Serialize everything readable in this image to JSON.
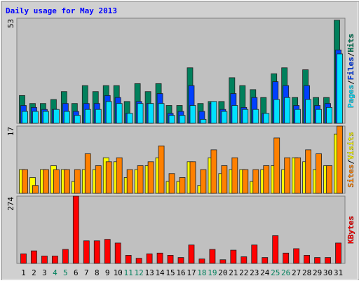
{
  "chart_data": [
    {
      "type": "bar",
      "title": "Daily usage for May 2013",
      "ylim": [
        0,
        53
      ],
      "yticks": [
        53
      ],
      "series": [
        {
          "name": "Hits",
          "color": "#00805c",
          "values": [
            14,
            10,
            10,
            12,
            16,
            10,
            19,
            16,
            19,
            19,
            11,
            20,
            16,
            20,
            9,
            9,
            28,
            10,
            11,
            11,
            23,
            19,
            17,
            13,
            25,
            28,
            13,
            27,
            13,
            13,
            52
          ]
        },
        {
          "name": "Files",
          "color": "#0040ff",
          "values": [
            9,
            8,
            7,
            7,
            10,
            6,
            10,
            10,
            14,
            13,
            5,
            11,
            10,
            15,
            5,
            6,
            19,
            6,
            10,
            7,
            15,
            8,
            13,
            5,
            21,
            19,
            9,
            19,
            9,
            10,
            37
          ]
        },
        {
          "name": "Pages",
          "color": "#00e0ff",
          "values": [
            6,
            6,
            6,
            7,
            6,
            4,
            7,
            7,
            11,
            10,
            5,
            10,
            10,
            10,
            4,
            4,
            9,
            2,
            11,
            6,
            9,
            7,
            7,
            5,
            12,
            13,
            7,
            12,
            7,
            8,
            35
          ]
        }
      ]
    },
    {
      "type": "bar",
      "ylim": [
        0,
        17
      ],
      "yticks": [
        17
      ],
      "series": [
        {
          "name": "Visits",
          "color": "#ffff00",
          "values": [
            6,
            4,
            6,
            7,
            6,
            3,
            6,
            6,
            9,
            8,
            4,
            6,
            7,
            9,
            3,
            3,
            8,
            2,
            9,
            5,
            6,
            6,
            3,
            6,
            7,
            6,
            9,
            8,
            6,
            7,
            15
          ]
        },
        {
          "name": "Sites",
          "color": "#ff8000",
          "values": [
            6,
            2,
            6,
            6,
            6,
            6,
            10,
            7,
            8,
            9,
            6,
            7,
            8,
            12,
            5,
            4,
            8,
            6,
            11,
            7,
            9,
            6,
            6,
            7,
            14,
            9,
            9,
            11,
            10,
            7,
            17
          ]
        }
      ]
    },
    {
      "type": "bar",
      "ylim": [
        0,
        274
      ],
      "yticks": [
        274
      ],
      "categories": [
        "1",
        "2",
        "3",
        "4",
        "5",
        "6",
        "7",
        "8",
        "9",
        "10",
        "11",
        "12",
        "13",
        "14",
        "15",
        "16",
        "17",
        "18",
        "19",
        "20",
        "21",
        "22",
        "23",
        "24",
        "25",
        "26",
        "27",
        "28",
        "29",
        "30",
        "31"
      ],
      "label_colors": [
        "#000000",
        "#000000",
        "#000000",
        "#00805c",
        "#00805c",
        "#000000",
        "#000000",
        "#000000",
        "#000000",
        "#000000",
        "#00805c",
        "#00805c",
        "#000000",
        "#000000",
        "#000000",
        "#000000",
        "#000000",
        "#00805c",
        "#00805c",
        "#000000",
        "#000000",
        "#000000",
        "#000000",
        "#000000",
        "#00805c",
        "#00805c",
        "#000000",
        "#000000",
        "#000000",
        "#000000",
        "#000000"
      ],
      "series": [
        {
          "name": "KBytes",
          "color": "#ff0000",
          "values": [
            39,
            51,
            30,
            30,
            57,
            274,
            92,
            92,
            98,
            83,
            33,
            21,
            39,
            42,
            33,
            24,
            75,
            18,
            57,
            15,
            54,
            27,
            75,
            24,
            113,
            42,
            60,
            33,
            24,
            24,
            83
          ]
        }
      ]
    }
  ]
}
